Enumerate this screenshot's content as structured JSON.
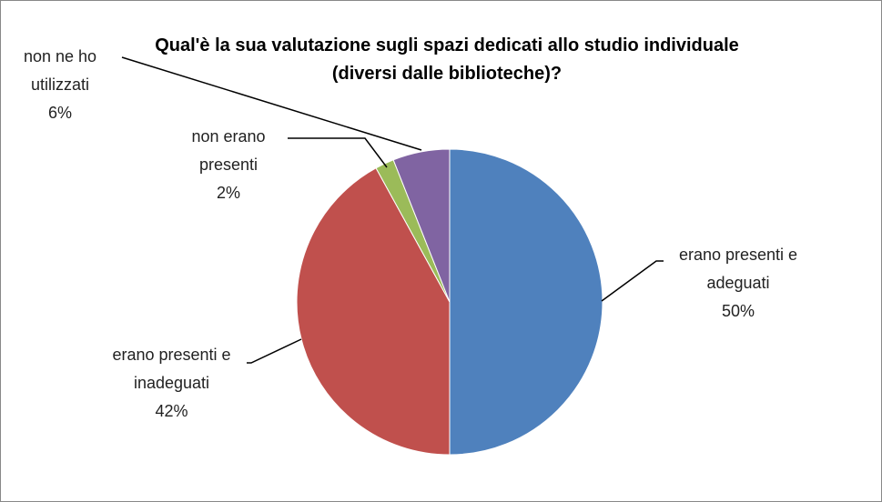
{
  "chart_data": {
    "type": "pie",
    "title": "Qual'è la sua valutazione sugli spazi dedicati allo studio individuale (diversi dalle biblioteche)?",
    "categories": [
      "erano presenti e adeguati",
      "erano presenti e inadeguati",
      "non erano presenti",
      "non ne ho utilizzati"
    ],
    "values": [
      50,
      42,
      2,
      6
    ],
    "value_labels": [
      "50%",
      "42%",
      "2%",
      "6%"
    ],
    "colors": [
      "#4f81bd",
      "#c0504d",
      "#9bbb59",
      "#8064a2"
    ]
  }
}
